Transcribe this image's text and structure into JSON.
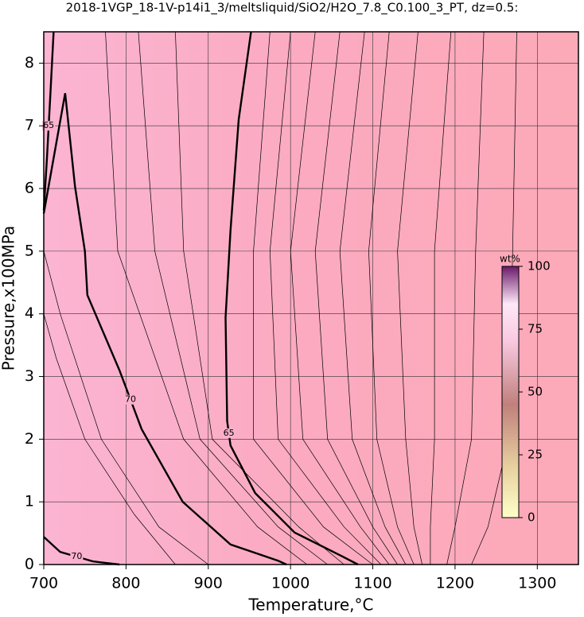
{
  "chart_data": {
    "type": "contour",
    "title": "2018-1VGP_18-1V-p14i1_3/meltsliquid/SiO2/H2O_7.8_C0.100_3_PT, dz=0.5:",
    "xlabel": "Temperature,°C",
    "ylabel": "Pressure,x100MPa",
    "xlim": [
      700,
      1350
    ],
    "xticks": [
      700,
      800,
      900,
      1000,
      1100,
      1200,
      1300
    ],
    "ylim": [
      0,
      8.5
    ],
    "yticks": [
      0,
      1,
      2,
      3,
      4,
      5,
      6,
      7,
      8
    ],
    "grid": true,
    "color": "#000000",
    "series": [
      {
        "label": "70",
        "bold": true,
        "x": [
          700,
          726,
          738,
          750,
          753,
          792,
          819,
          869,
          927,
          985,
          995
        ],
        "y": [
          5.6,
          7.52,
          6.03,
          5.0,
          4.3,
          3.1,
          2.16,
          1.0,
          0.32,
          0.06,
          0
        ]
      },
      {
        "label": "65",
        "bold": true,
        "x": [
          952,
          937,
          927,
          921,
          923,
          927,
          957,
          1005,
          1063,
          1082
        ],
        "y": [
          8.5,
          7.1,
          5.33,
          3.94,
          2.29,
          1.9,
          1.14,
          0.51,
          0.13,
          0
        ]
      },
      {
        "label": "65",
        "bold": true,
        "x": [
          712,
          708,
          704,
          700
        ],
        "y": [
          8.5,
          7.5,
          6.5,
          5.65
        ]
      },
      {
        "label": "70",
        "bold": true,
        "x": [
          700,
          720,
          760,
          792
        ],
        "y": [
          0.44,
          0.2,
          0.05,
          0
        ]
      },
      {
        "x": [
          975,
          955,
          955,
          1040,
          1100
        ],
        "y": [
          8.5,
          5,
          2,
          0.6,
          0
        ]
      },
      {
        "x": [
          1000,
          975,
          985,
          1065,
          1110
        ],
        "y": [
          8.5,
          5,
          2,
          0.6,
          0
        ]
      },
      {
        "x": [
          1030,
          1000,
          1015,
          1085,
          1120
        ],
        "y": [
          8.5,
          5,
          2,
          0.6,
          0
        ]
      },
      {
        "x": [
          1060,
          1030,
          1045,
          1100,
          1130
        ],
        "y": [
          8.5,
          5,
          2,
          0.6,
          0
        ]
      },
      {
        "x": [
          1090,
          1060,
          1075,
          1115,
          1140
        ],
        "y": [
          8.5,
          5,
          2,
          0.6,
          0
        ]
      },
      {
        "x": [
          1120,
          1095,
          1105,
          1130,
          1150
        ],
        "y": [
          8.5,
          5,
          2,
          0.6,
          0
        ]
      },
      {
        "x": [
          1155,
          1130,
          1140,
          1150,
          1160
        ],
        "y": [
          8.5,
          5,
          2,
          0.6,
          0
        ]
      },
      {
        "x": [
          1195,
          1175,
          1175,
          1170,
          1170
        ],
        "y": [
          8.5,
          5,
          2,
          0.6,
          0
        ]
      },
      {
        "x": [
          1235,
          1225,
          1220,
          1200,
          1190
        ],
        "y": [
          8.5,
          5,
          2,
          0.6,
          0
        ]
      },
      {
        "x": [
          1275,
          1270,
          1265,
          1240,
          1220
        ],
        "y": [
          8.5,
          5,
          2,
          0.6,
          0
        ]
      },
      {
        "x": [
          775,
          790,
          870,
          960,
          1020
        ],
        "y": [
          8.5,
          5,
          2,
          0.6,
          0
        ]
      },
      {
        "x": [
          815,
          835,
          890,
          985,
          1045
        ],
        "y": [
          8.5,
          5,
          2,
          0.6,
          0
        ]
      },
      {
        "x": [
          860,
          870,
          905,
          1010,
          1065
        ],
        "y": [
          8.5,
          5,
          2,
          0.6,
          0
        ]
      },
      {
        "x": [
          700,
          720,
          770,
          840,
          900
        ],
        "y": [
          5,
          4,
          2,
          0.6,
          0
        ]
      },
      {
        "x": [
          700,
          715,
          750,
          810,
          860
        ],
        "y": [
          4,
          3.3,
          2,
          0.8,
          0
        ]
      }
    ],
    "colorbar": {
      "title": "wt%",
      "lim": [
        0,
        100
      ],
      "ticks": [
        0,
        25,
        50,
        75,
        100
      ]
    }
  }
}
